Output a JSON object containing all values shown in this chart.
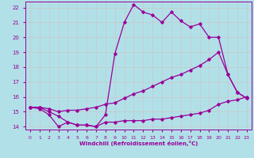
{
  "xlabel": "Windchill (Refroidissement éolien,°C)",
  "background_color": "#b2e0e8",
  "grid_color": "#c8c8c8",
  "line_color": "#990099",
  "xlim": [
    -0.5,
    23.5
  ],
  "ylim": [
    13.8,
    22.4
  ],
  "xticks": [
    0,
    1,
    2,
    3,
    4,
    5,
    6,
    7,
    8,
    9,
    10,
    11,
    12,
    13,
    14,
    15,
    16,
    17,
    18,
    19,
    20,
    21,
    22,
    23
  ],
  "yticks": [
    14,
    15,
    16,
    17,
    18,
    19,
    20,
    21,
    22
  ],
  "line1_x": [
    0,
    1,
    2,
    3,
    4,
    5,
    6,
    7,
    8,
    9,
    10,
    11,
    12,
    13,
    14,
    15,
    16,
    17,
    18,
    19,
    20,
    21,
    22,
    23
  ],
  "line1_y": [
    15.3,
    15.2,
    14.8,
    14.0,
    14.3,
    14.1,
    14.1,
    14.0,
    14.3,
    14.3,
    14.4,
    14.4,
    14.4,
    14.5,
    14.5,
    14.6,
    14.7,
    14.8,
    14.9,
    15.1,
    15.5,
    15.7,
    15.8,
    16.0
  ],
  "line2_x": [
    0,
    1,
    2,
    3,
    4,
    5,
    6,
    7,
    8,
    9,
    10,
    11,
    12,
    13,
    14,
    15,
    16,
    17,
    18,
    19,
    20,
    21,
    22,
    23
  ],
  "line2_y": [
    15.3,
    15.3,
    15.2,
    15.0,
    15.1,
    15.1,
    15.2,
    15.3,
    15.5,
    15.6,
    15.9,
    16.2,
    16.4,
    16.7,
    17.0,
    17.3,
    17.5,
    17.8,
    18.1,
    18.5,
    19.0,
    17.5,
    16.3,
    15.9
  ],
  "line3_x": [
    0,
    1,
    2,
    3,
    4,
    5,
    6,
    7,
    8,
    9,
    10,
    11,
    12,
    13,
    14,
    15,
    16,
    17,
    18,
    19,
    20,
    21,
    22,
    23
  ],
  "line3_y": [
    15.3,
    15.3,
    15.0,
    14.7,
    14.3,
    14.1,
    14.1,
    14.0,
    14.8,
    18.9,
    21.0,
    22.2,
    21.7,
    21.5,
    21.0,
    21.7,
    21.1,
    20.7,
    20.9,
    20.0,
    20.0,
    17.5,
    16.3,
    15.9
  ]
}
